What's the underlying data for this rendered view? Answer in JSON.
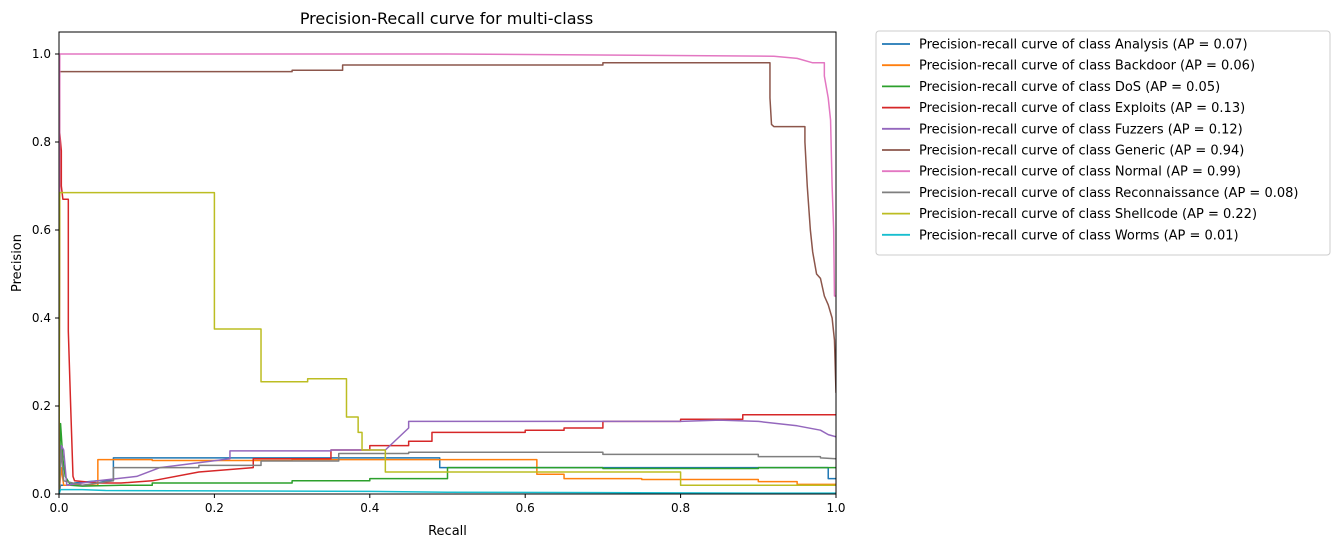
{
  "chart_data": {
    "type": "line",
    "title": "Precision-Recall curve for multi-class",
    "xlabel": "Recall",
    "ylabel": "Precision",
    "xlim": [
      0.0,
      1.0
    ],
    "ylim": [
      0.0,
      1.05
    ],
    "xticks": [
      "0.0",
      "0.2",
      "0.4",
      "0.6",
      "0.8",
      "1.0"
    ],
    "yticks": [
      "0.0",
      "0.2",
      "0.4",
      "0.6",
      "0.8",
      "1.0"
    ],
    "grid": false,
    "legend_position": "outside-top-right",
    "series": [
      {
        "name": "Precision-recall curve of class Analysis (AP = 0.07)",
        "color": "#1f77b4",
        "points": [
          [
            0,
            0.0
          ],
          [
            0.002,
            0.02
          ],
          [
            0.01,
            0.02
          ],
          [
            0.02,
            0.025
          ],
          [
            0.05,
            0.03
          ],
          [
            0.07,
            0.03
          ],
          [
            0.07,
            0.082
          ],
          [
            0.3,
            0.082
          ],
          [
            0.49,
            0.082
          ],
          [
            0.49,
            0.06
          ],
          [
            0.99,
            0.06
          ],
          [
            0.99,
            0.035
          ],
          [
            1.0,
            0.035
          ]
        ]
      },
      {
        "name": "Precision-recall curve of class Backdoor (AP = 0.06)",
        "color": "#ff7f0e",
        "points": [
          [
            0,
            0.0
          ],
          [
            0.003,
            0.06
          ],
          [
            0.006,
            0.02
          ],
          [
            0.02,
            0.02
          ],
          [
            0.05,
            0.02
          ],
          [
            0.05,
            0.078
          ],
          [
            0.12,
            0.078
          ],
          [
            0.12,
            0.076
          ],
          [
            0.3,
            0.076
          ],
          [
            0.3,
            0.078
          ],
          [
            0.615,
            0.078
          ],
          [
            0.615,
            0.045
          ],
          [
            0.65,
            0.045
          ],
          [
            0.65,
            0.035
          ],
          [
            0.75,
            0.035
          ],
          [
            0.75,
            0.033
          ],
          [
            0.9,
            0.033
          ],
          [
            0.9,
            0.028
          ],
          [
            0.95,
            0.028
          ],
          [
            0.95,
            0.022
          ],
          [
            1.0,
            0.022
          ]
        ]
      },
      {
        "name": "Precision-recall curve of class DoS (AP = 0.05)",
        "color": "#2ca02c",
        "points": [
          [
            0,
            0.0
          ],
          [
            0.002,
            0.16
          ],
          [
            0.005,
            0.08
          ],
          [
            0.008,
            0.04
          ],
          [
            0.015,
            0.02
          ],
          [
            0.03,
            0.018
          ],
          [
            0.08,
            0.02
          ],
          [
            0.12,
            0.02
          ],
          [
            0.12,
            0.025
          ],
          [
            0.3,
            0.025
          ],
          [
            0.3,
            0.03
          ],
          [
            0.4,
            0.03
          ],
          [
            0.4,
            0.035
          ],
          [
            0.5,
            0.035
          ],
          [
            0.5,
            0.06
          ],
          [
            0.7,
            0.06
          ],
          [
            0.7,
            0.058
          ],
          [
            0.9,
            0.058
          ],
          [
            0.9,
            0.06
          ],
          [
            1.0,
            0.06
          ]
        ]
      },
      {
        "name": "Precision-recall curve of class Exploits (AP = 0.13)",
        "color": "#d62728",
        "points": [
          [
            0,
            0.0
          ],
          [
            0.001,
            0.82
          ],
          [
            0.003,
            0.78
          ],
          [
            0.003,
            0.7
          ],
          [
            0.005,
            0.67
          ],
          [
            0.012,
            0.67
          ],
          [
            0.012,
            0.37
          ],
          [
            0.015,
            0.2
          ],
          [
            0.018,
            0.04
          ],
          [
            0.02,
            0.03
          ],
          [
            0.05,
            0.025
          ],
          [
            0.08,
            0.025
          ],
          [
            0.12,
            0.03
          ],
          [
            0.18,
            0.05
          ],
          [
            0.25,
            0.06
          ],
          [
            0.25,
            0.08
          ],
          [
            0.35,
            0.08
          ],
          [
            0.35,
            0.1
          ],
          [
            0.4,
            0.1
          ],
          [
            0.4,
            0.11
          ],
          [
            0.45,
            0.11
          ],
          [
            0.45,
            0.12
          ],
          [
            0.48,
            0.12
          ],
          [
            0.48,
            0.14
          ],
          [
            0.6,
            0.14
          ],
          [
            0.6,
            0.145
          ],
          [
            0.65,
            0.145
          ],
          [
            0.65,
            0.15
          ],
          [
            0.7,
            0.15
          ],
          [
            0.7,
            0.165
          ],
          [
            0.8,
            0.165
          ],
          [
            0.8,
            0.17
          ],
          [
            0.88,
            0.17
          ],
          [
            0.88,
            0.18
          ],
          [
            1.0,
            0.18
          ]
        ]
      },
      {
        "name": "Precision-recall curve of class Fuzzers (AP = 0.12)",
        "color": "#9467bd",
        "points": [
          [
            0,
            0.0
          ],
          [
            0.003,
            0.11
          ],
          [
            0.006,
            0.1
          ],
          [
            0.01,
            0.02
          ],
          [
            0.05,
            0.03
          ],
          [
            0.1,
            0.04
          ],
          [
            0.13,
            0.06
          ],
          [
            0.22,
            0.08
          ],
          [
            0.22,
            0.098
          ],
          [
            0.35,
            0.098
          ],
          [
            0.35,
            0.1
          ],
          [
            0.42,
            0.1
          ],
          [
            0.45,
            0.15
          ],
          [
            0.45,
            0.165
          ],
          [
            0.6,
            0.165
          ],
          [
            0.8,
            0.165
          ],
          [
            0.85,
            0.168
          ],
          [
            0.9,
            0.165
          ],
          [
            0.95,
            0.155
          ],
          [
            0.98,
            0.145
          ],
          [
            0.99,
            0.135
          ],
          [
            1.0,
            0.13
          ]
        ]
      },
      {
        "name": "Precision-recall curve of class Generic (AP = 0.94)",
        "color": "#8c564b",
        "points": [
          [
            0,
            0.0
          ],
          [
            0.001,
            0.96
          ],
          [
            0.3,
            0.96
          ],
          [
            0.3,
            0.963
          ],
          [
            0.365,
            0.963
          ],
          [
            0.365,
            0.975
          ],
          [
            0.7,
            0.975
          ],
          [
            0.7,
            0.98
          ],
          [
            0.915,
            0.98
          ],
          [
            0.915,
            0.9
          ],
          [
            0.917,
            0.84
          ],
          [
            0.92,
            0.835
          ],
          [
            0.96,
            0.835
          ],
          [
            0.96,
            0.8
          ],
          [
            0.963,
            0.7
          ],
          [
            0.967,
            0.6
          ],
          [
            0.97,
            0.55
          ],
          [
            0.975,
            0.5
          ],
          [
            0.98,
            0.49
          ],
          [
            0.985,
            0.45
          ],
          [
            0.99,
            0.43
          ],
          [
            0.995,
            0.4
          ],
          [
            0.998,
            0.35
          ],
          [
            1.0,
            0.23
          ]
        ]
      },
      {
        "name": "Precision-recall curve of class Normal (AP = 0.99)",
        "color": "#e377c2",
        "points": [
          [
            0,
            0.0
          ],
          [
            0.001,
            1.0
          ],
          [
            0.5,
            1.0
          ],
          [
            0.92,
            0.995
          ],
          [
            0.95,
            0.99
          ],
          [
            0.97,
            0.98
          ],
          [
            0.985,
            0.98
          ],
          [
            0.985,
            0.95
          ],
          [
            0.99,
            0.9
          ],
          [
            0.993,
            0.85
          ],
          [
            0.995,
            0.7
          ],
          [
            0.997,
            0.6
          ],
          [
            0.998,
            0.45
          ],
          [
            1.0,
            0.45
          ]
        ]
      },
      {
        "name": "Precision-recall curve of class Reconnaissance (AP = 0.08)",
        "color": "#7f7f7f",
        "points": [
          [
            0,
            0.0
          ],
          [
            0.003,
            0.1
          ],
          [
            0.006,
            0.03
          ],
          [
            0.03,
            0.02
          ],
          [
            0.07,
            0.03
          ],
          [
            0.07,
            0.06
          ],
          [
            0.18,
            0.06
          ],
          [
            0.18,
            0.065
          ],
          [
            0.26,
            0.065
          ],
          [
            0.26,
            0.075
          ],
          [
            0.36,
            0.075
          ],
          [
            0.36,
            0.092
          ],
          [
            0.45,
            0.092
          ],
          [
            0.45,
            0.095
          ],
          [
            0.7,
            0.095
          ],
          [
            0.7,
            0.09
          ],
          [
            0.9,
            0.09
          ],
          [
            0.9,
            0.085
          ],
          [
            0.98,
            0.085
          ],
          [
            0.98,
            0.082
          ],
          [
            1.0,
            0.08
          ]
        ]
      },
      {
        "name": "Precision-recall curve of class Shellcode (AP = 0.22)",
        "color": "#bcbd22",
        "points": [
          [
            0,
            0.0
          ],
          [
            0.001,
            0.685
          ],
          [
            0.2,
            0.685
          ],
          [
            0.2,
            0.375
          ],
          [
            0.26,
            0.375
          ],
          [
            0.26,
            0.255
          ],
          [
            0.32,
            0.255
          ],
          [
            0.32,
            0.262
          ],
          [
            0.37,
            0.262
          ],
          [
            0.37,
            0.175
          ],
          [
            0.385,
            0.175
          ],
          [
            0.385,
            0.14
          ],
          [
            0.39,
            0.14
          ],
          [
            0.39,
            0.1
          ],
          [
            0.42,
            0.1
          ],
          [
            0.42,
            0.05
          ],
          [
            0.8,
            0.05
          ],
          [
            0.8,
            0.02
          ],
          [
            1.0,
            0.02
          ]
        ]
      },
      {
        "name": "Precision-recall curve of class Worms (AP = 0.01)",
        "color": "#17becf",
        "points": [
          [
            0,
            0.0
          ],
          [
            0.002,
            0.01
          ],
          [
            0.03,
            0.01
          ],
          [
            0.06,
            0.008
          ],
          [
            0.2,
            0.007
          ],
          [
            0.4,
            0.006
          ],
          [
            0.5,
            0.004
          ],
          [
            0.7,
            0.003
          ],
          [
            0.9,
            0.002
          ],
          [
            1.0,
            0.002
          ]
        ]
      }
    ]
  }
}
